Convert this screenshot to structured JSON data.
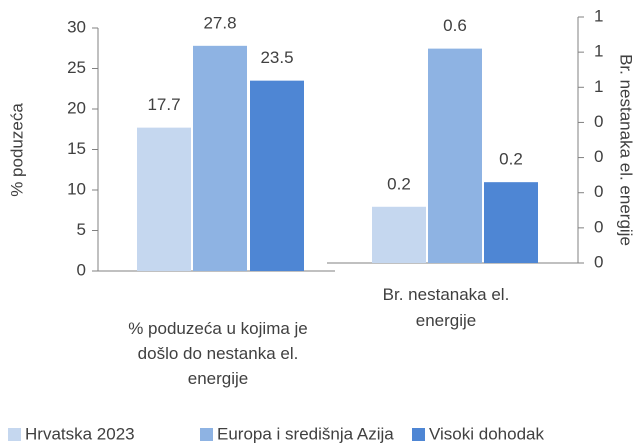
{
  "chart_data": [
    {
      "type": "bar",
      "categories": [
        "% poduzeća u kojima je došlo do nestanka el. energije"
      ],
      "y_label": "% poduzeća",
      "series": [
        {
          "name": "Hrvatska 2023",
          "color": "#c5d7ef",
          "values": [
            17.7
          ]
        },
        {
          "name": "Europa i središnja Azija",
          "color": "#8eb3e3",
          "values": [
            27.8
          ]
        },
        {
          "name": "Visoki dohodak",
          "color": "#4e86d4",
          "values": [
            23.5
          ]
        }
      ],
      "ylim": [
        0,
        30
      ],
      "yticks": [
        0,
        5,
        10,
        15,
        20,
        25,
        30
      ],
      "legend": "bottom"
    },
    {
      "type": "bar",
      "categories": [
        "Br. nestanaka el. energije"
      ],
      "y_label": "Br. nestanaka el. energije",
      "series": [
        {
          "color": "#c5d7ef",
          "values": [
            0.16
          ],
          "value_labels": [
            "0.2"
          ]
        },
        {
          "color": "#8eb3e3",
          "values": [
            0.61
          ],
          "value_labels": [
            "0.6"
          ]
        },
        {
          "color": "#4e86d4",
          "values": [
            0.23
          ],
          "value_labels": [
            "0.2"
          ]
        }
      ],
      "ylim": [
        0,
        0.7
      ],
      "yticks": [
        0,
        {
          "value": 0.1,
          "label": "0"
        },
        {
          "value": 0.2,
          "label": "0"
        },
        {
          "value": 0.3,
          "label": "0"
        },
        {
          "value": 0.4,
          "label": "0"
        },
        {
          "value": 0.5,
          "label": "1"
        },
        {
          "value": 0.6,
          "label": "1"
        },
        {
          "value": 0.7,
          "label": "1"
        }
      ]
    }
  ]
}
